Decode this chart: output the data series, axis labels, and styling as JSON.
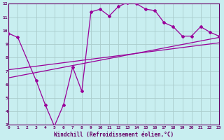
{
  "xlabel": "Windchill (Refroidissement éolien,°C)",
  "bg_color": "#c8eef0",
  "line_color": "#990099",
  "grid_color": "#aacccc",
  "axis_color": "#660066",
  "xlim": [
    0,
    23
  ],
  "ylim": [
    3,
    12
  ],
  "xticks": [
    0,
    1,
    2,
    3,
    4,
    5,
    6,
    7,
    8,
    9,
    10,
    11,
    12,
    13,
    14,
    15,
    16,
    17,
    18,
    19,
    20,
    21,
    22,
    23
  ],
  "yticks": [
    3,
    4,
    5,
    6,
    7,
    8,
    9,
    10,
    11,
    12
  ],
  "line1_x": [
    0,
    1,
    3,
    4,
    5,
    6,
    7,
    8,
    9,
    10,
    11,
    12,
    13,
    14,
    15,
    16,
    17,
    18,
    19,
    20,
    21,
    22,
    23
  ],
  "line1_y": [
    9.8,
    9.5,
    6.3,
    4.5,
    2.9,
    4.5,
    7.3,
    5.5,
    11.4,
    11.6,
    11.1,
    11.8,
    12.1,
    12.0,
    11.6,
    11.5,
    10.6,
    10.3,
    9.6,
    9.6,
    10.3,
    9.9,
    9.6
  ],
  "line2_x": [
    0,
    23
  ],
  "line2_y": [
    6.5,
    9.5
  ],
  "line3_x": [
    0,
    23
  ],
  "line3_y": [
    7.1,
    9.1
  ]
}
